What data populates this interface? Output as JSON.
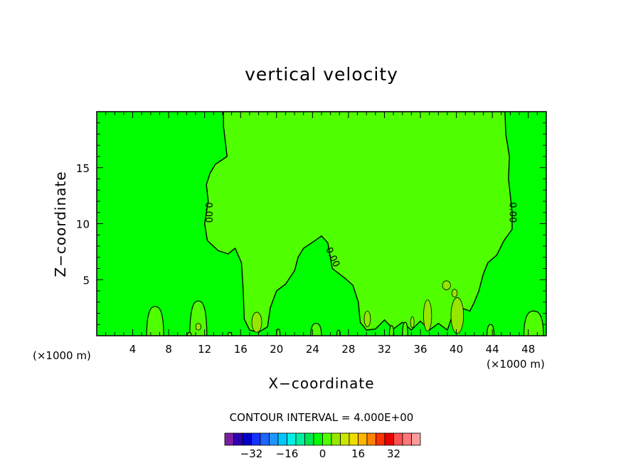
{
  "chart_data": {
    "type": "contour",
    "title": "vertical velocity",
    "xlabel": "X−coordinate",
    "ylabel": "Z−coordinate",
    "x_unit_left": "(×1000 m)",
    "x_unit_right": "(×1000 m)",
    "xlim": [
      0,
      50
    ],
    "ylim": [
      0,
      20
    ],
    "xticks": [
      {
        "value": 4,
        "label": "4"
      },
      {
        "value": 8,
        "label": "8"
      },
      {
        "value": 12,
        "label": "12"
      },
      {
        "value": 16,
        "label": "16"
      },
      {
        "value": 20,
        "label": "20"
      },
      {
        "value": 24,
        "label": "24"
      },
      {
        "value": 28,
        "label": "28"
      },
      {
        "value": 32,
        "label": "32"
      },
      {
        "value": 36,
        "label": "36"
      },
      {
        "value": 40,
        "label": "40"
      },
      {
        "value": 44,
        "label": "44"
      },
      {
        "value": 48,
        "label": "48"
      }
    ],
    "yticks": [
      {
        "value": 5,
        "label": "5"
      },
      {
        "value": 10,
        "label": "10"
      },
      {
        "value": 15,
        "label": "15"
      }
    ],
    "contour_interval_text": "CONTOUR INTERVAL = 4.000E+00",
    "contour_interval": 4.0,
    "contour_labels": [
      "0.00",
      "0.00",
      "0.00"
    ],
    "colorbar": {
      "colors": [
        "#7a1fa0",
        "#2e00b0",
        "#0000c8",
        "#1432ff",
        "#1e64ff",
        "#1e96ff",
        "#00c8ff",
        "#00f0e6",
        "#00f0a0",
        "#00e650",
        "#00ff00",
        "#50ff00",
        "#96e600",
        "#c8e600",
        "#f0dc00",
        "#ffb400",
        "#ff8200",
        "#ff3200",
        "#e60000",
        "#ff5050",
        "#ff7878",
        "#ff9b9b"
      ],
      "tick_labels": [
        {
          "index": 3,
          "label": "−32"
        },
        {
          "index": 7,
          "label": "−16"
        },
        {
          "index": 11,
          "label": "0"
        },
        {
          "index": 15,
          "label": "16"
        },
        {
          "index": 19,
          "label": "32"
        }
      ]
    },
    "field": {
      "background_color": "#00ff00",
      "ascent_color": "#50ff00",
      "updraft_core_color": "#96e600",
      "ascent_region": [
        [
          14.1,
          20
        ],
        [
          14.1,
          18.7
        ],
        [
          14.5,
          16
        ],
        [
          13.2,
          15.3
        ],
        [
          12.6,
          14.5
        ],
        [
          12.2,
          13.5
        ],
        [
          12.4,
          12
        ],
        [
          12,
          10
        ],
        [
          12.3,
          8.5
        ],
        [
          13.5,
          7.6
        ],
        [
          14.6,
          7.3
        ],
        [
          15.4,
          7.8
        ],
        [
          16.1,
          6.5
        ],
        [
          16.3,
          4
        ],
        [
          16.4,
          1.5
        ],
        [
          17,
          0.5
        ],
        [
          18,
          0.3
        ],
        [
          19,
          0.8
        ],
        [
          19.3,
          2.5
        ],
        [
          20,
          4
        ],
        [
          21,
          4.6
        ],
        [
          22,
          5.8
        ],
        [
          22.4,
          7
        ],
        [
          23,
          7.8
        ],
        [
          24.3,
          8.5
        ],
        [
          25,
          8.9
        ],
        [
          25.7,
          8.3
        ],
        [
          26.2,
          6
        ],
        [
          27.5,
          5.2
        ],
        [
          28.5,
          4.5
        ],
        [
          29.1,
          3
        ],
        [
          29.3,
          1.2
        ],
        [
          30,
          0.5
        ],
        [
          31,
          0.6
        ],
        [
          32,
          1.4
        ],
        [
          33,
          0.6
        ],
        [
          34,
          1.2
        ],
        [
          35,
          0.5
        ],
        [
          36,
          1.3
        ],
        [
          37,
          0.5
        ],
        [
          38,
          1.1
        ],
        [
          39,
          0.5
        ],
        [
          39.6,
          1.9
        ],
        [
          40.5,
          2.5
        ],
        [
          41.5,
          2.2
        ],
        [
          42,
          3
        ],
        [
          42.5,
          4
        ],
        [
          43,
          5.5
        ],
        [
          43.5,
          6.5
        ],
        [
          44.5,
          7.2
        ],
        [
          45.3,
          8.5
        ],
        [
          46.2,
          9.5
        ],
        [
          46.2,
          11
        ],
        [
          45.8,
          14
        ],
        [
          45.9,
          16
        ],
        [
          45.5,
          18
        ],
        [
          45.4,
          20
        ]
      ],
      "updraft_cells": [
        {
          "x": 17.8,
          "z": 1.2,
          "rx": 0.55,
          "rz": 0.9
        },
        {
          "x": 30.1,
          "z": 1.5,
          "rx": 0.35,
          "rz": 0.7
        },
        {
          "x": 36.8,
          "z": 1.8,
          "rx": 0.45,
          "rz": 1.4
        },
        {
          "x": 40.1,
          "z": 1.8,
          "rx": 0.7,
          "rz": 1.6
        },
        {
          "x": 38.9,
          "z": 4.5,
          "rx": 0.45,
          "rz": 0.4
        },
        {
          "x": 39.8,
          "z": 3.8,
          "rx": 0.3,
          "rz": 0.35
        },
        {
          "x": 11.3,
          "z": 0.8,
          "rx": 0.3,
          "rz": 0.3
        },
        {
          "x": 35.1,
          "z": 1.2,
          "rx": 0.2,
          "rz": 0.5
        }
      ],
      "surface_bumps": [
        {
          "x": 6.5,
          "w": 1.9,
          "h": 2.6
        },
        {
          "x": 11.3,
          "w": 1.9,
          "h": 3.1
        },
        {
          "x": 48.6,
          "w": 2.2,
          "h": 2.2
        },
        {
          "x": 24.4,
          "w": 1.2,
          "h": 1.1
        },
        {
          "x": 10.3,
          "w": 0.5,
          "h": 0.3
        },
        {
          "x": 14.8,
          "w": 0.5,
          "h": 0.3
        },
        {
          "x": 20.2,
          "w": 0.4,
          "h": 0.6
        },
        {
          "x": 26.9,
          "w": 0.4,
          "h": 0.5
        },
        {
          "x": 43.8,
          "w": 0.8,
          "h": 1.0
        },
        {
          "x": 34.3,
          "w": 0.6,
          "h": 1.2
        },
        {
          "x": 32.8,
          "w": 0.5,
          "h": 0.9
        }
      ]
    }
  }
}
